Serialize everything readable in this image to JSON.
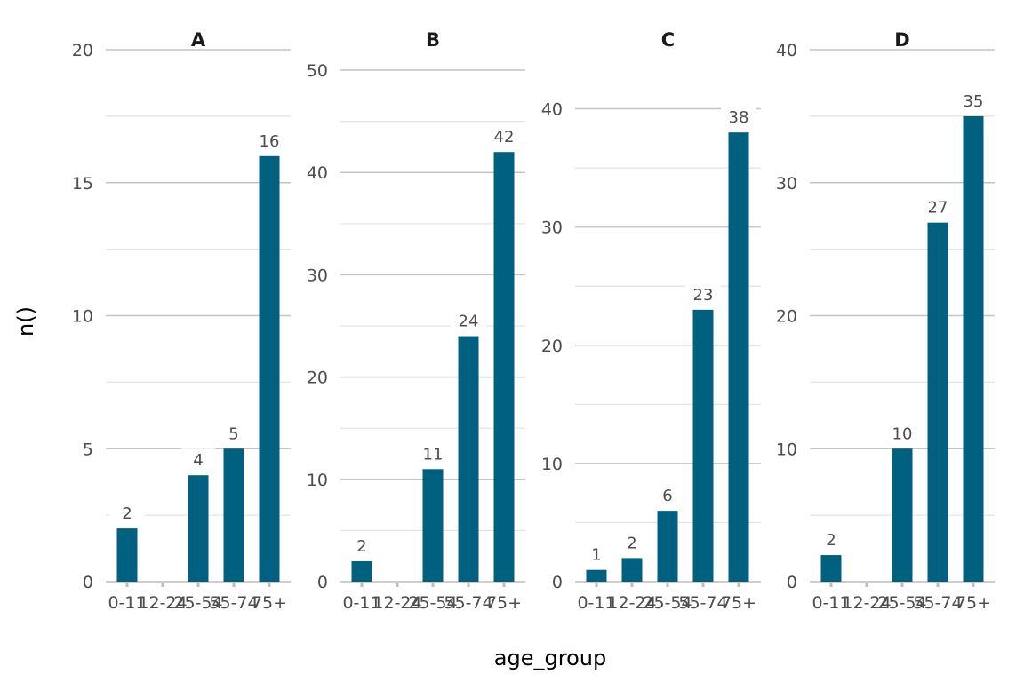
{
  "chart_data": {
    "type": "bar",
    "xlabel": "age_group",
    "ylabel": "n()",
    "categories": [
      "0-11",
      "12-24",
      "25-54",
      "55-74",
      "75+"
    ],
    "bar_color": "#006080",
    "facets": [
      {
        "title": "A",
        "values": [
          2,
          0,
          4,
          5,
          16
        ],
        "ylim": [
          0,
          20
        ],
        "major_ticks": [
          0,
          5,
          10,
          15,
          20
        ]
      },
      {
        "title": "B",
        "values": [
          2,
          0,
          11,
          24,
          42
        ],
        "ylim": [
          0,
          52
        ],
        "major_ticks": [
          0,
          10,
          20,
          30,
          40,
          50
        ]
      },
      {
        "title": "C",
        "values": [
          1,
          2,
          6,
          23,
          38
        ],
        "ylim": [
          0,
          45
        ],
        "major_ticks": [
          0,
          10,
          20,
          30,
          40
        ]
      },
      {
        "title": "D",
        "values": [
          2,
          0,
          10,
          27,
          35
        ],
        "ylim": [
          0,
          40
        ],
        "major_ticks": [
          0,
          10,
          20,
          30,
          40
        ]
      }
    ]
  }
}
